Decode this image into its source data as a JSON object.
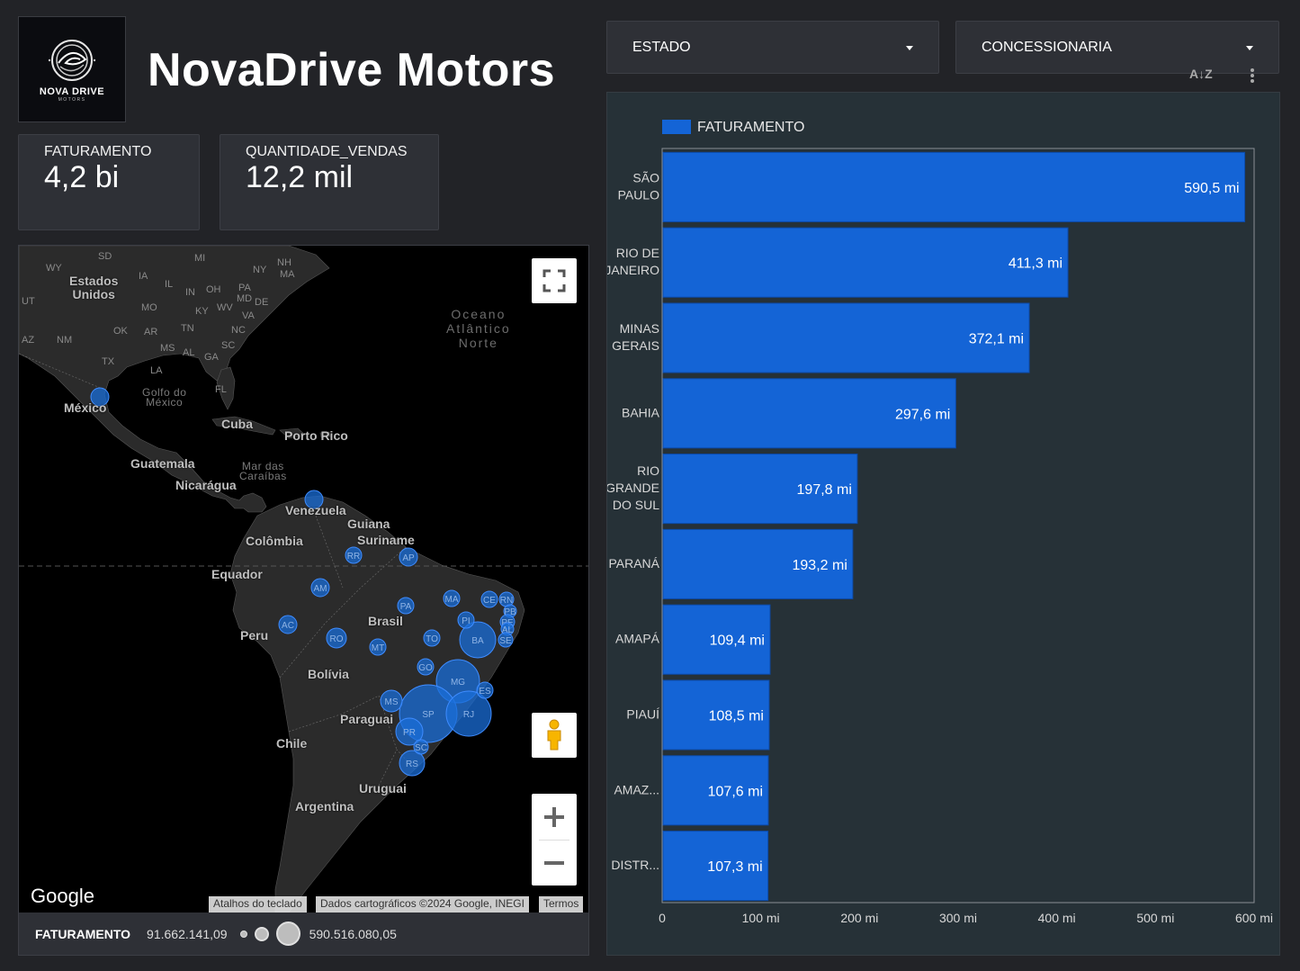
{
  "header": {
    "app_title": "NovaDrive Motors",
    "logo_brand": "NOVA DRIVE",
    "logo_sub": "MOTORS"
  },
  "kpis": [
    {
      "label": "FATURAMENTO",
      "value": "4,2 bi"
    },
    {
      "label": "QUANTIDADE_VENDAS",
      "value": "12,2 mil"
    }
  ],
  "filters": [
    {
      "label": "ESTADO"
    },
    {
      "label": "CONCESSIONARIA"
    }
  ],
  "map": {
    "labels": {
      "eua": "Estados\nUnidos",
      "mexico": "México",
      "cuba": "Cuba",
      "porto_rico": "Porto Rico",
      "guatemala": "Guatemala",
      "nicaragua": "Nicarágua",
      "venezuela": "Venezuela",
      "guiana": "Guiana",
      "suriname": "Suriname",
      "colombia": "Colômbia",
      "equador": "Equador",
      "brasil": "Brasil",
      "peru": "Peru",
      "bolivia": "Bolívia",
      "paraguai": "Paraguai",
      "chile": "Chile",
      "uruguai": "Uruguai",
      "argentina": "Argentina",
      "golfo": "Golfo do\nMéxico",
      "caribe": "Mar das\nCaraíbas",
      "oceano": "Oceano\nAtlântico\nNorte"
    },
    "us_states": [
      "SD",
      "WY",
      "IA",
      "IL",
      "MI",
      "NY",
      "NH",
      "MA",
      "UT",
      "MO",
      "IN",
      "OH",
      "PA",
      "MD",
      "DE",
      "KY",
      "WV",
      "VA",
      "OK",
      "AR",
      "TN",
      "NC",
      "AZ",
      "NM",
      "TX",
      "MS",
      "AL",
      "GA",
      "SC",
      "LA",
      "FL"
    ],
    "bubbles": [
      {
        "uf": "BA"
      },
      {
        "uf": "MG"
      },
      {
        "uf": "SP"
      },
      {
        "uf": "RJ"
      },
      {
        "uf": "PR"
      },
      {
        "uf": "RS"
      },
      {
        "uf": "SC"
      },
      {
        "uf": "GO"
      },
      {
        "uf": "ES"
      },
      {
        "uf": "MS"
      },
      {
        "uf": "MT"
      },
      {
        "uf": "TO"
      },
      {
        "uf": "RO"
      },
      {
        "uf": "AC"
      },
      {
        "uf": "AM"
      },
      {
        "uf": "RR"
      },
      {
        "uf": "AP"
      },
      {
        "uf": "PA"
      },
      {
        "uf": "MA"
      },
      {
        "uf": "PI"
      },
      {
        "uf": "CE"
      },
      {
        "uf": "RN"
      },
      {
        "uf": "PB"
      },
      {
        "uf": "PE"
      },
      {
        "uf": "AL"
      },
      {
        "uf": "SE"
      },
      {
        "uf": ""
      },
      {
        "uf": ""
      }
    ],
    "attribution": [
      "Atalhos do teclado",
      "Dados cartográficos ©2024 Google, INEGI",
      "Termos"
    ],
    "google_logo": "Google",
    "legend": {
      "title": "FATURAMENTO",
      "min": "91.662.141,09",
      "max": "590.516.080,05"
    },
    "bubble_color": "#1a6ed8"
  },
  "chart_data": {
    "type": "bar",
    "orientation": "horizontal",
    "legend_label": "FATURAMENTO",
    "legend_position": "top-left",
    "color": "#1464d6",
    "categories": [
      "SÃO PAULO",
      "RIO DE JANEIRO",
      "MINAS GERAIS",
      "BAHIA",
      "RIO GRANDE DO SUL",
      "PARANÁ",
      "AMAPÁ",
      "PIAUÍ",
      "AMAZ...",
      "DISTR..."
    ],
    "category_lines": [
      [
        "SÃO",
        "PAULO"
      ],
      [
        "RIO DE",
        "JANEIRO"
      ],
      [
        "MINAS",
        "GERAIS"
      ],
      [
        "BAHIA"
      ],
      [
        "RIO",
        "GRANDE",
        "DO SUL"
      ],
      [
        "PARANÁ"
      ],
      [
        "AMAPÁ"
      ],
      [
        "PIAUÍ"
      ],
      [
        "AMAZ..."
      ],
      [
        "DISTR..."
      ]
    ],
    "values": [
      590.5,
      411.3,
      372.1,
      297.6,
      197.8,
      193.2,
      109.4,
      108.5,
      107.6,
      107.3
    ],
    "value_labels": [
      "590,5 mi",
      "411,3 mi",
      "372,1 mi",
      "297,6 mi",
      "197,8 mi",
      "193,2 mi",
      "109,4 mi",
      "108,5 mi",
      "107,6 mi",
      "107,3 mi"
    ],
    "xlim": [
      0,
      600
    ],
    "x_ticks": [
      0,
      100,
      200,
      300,
      400,
      500,
      600
    ],
    "x_tick_labels": [
      "0",
      "100 mi",
      "200 mi",
      "300 mi",
      "400 mi",
      "500 mi",
      "600 mi"
    ],
    "grid": false
  }
}
